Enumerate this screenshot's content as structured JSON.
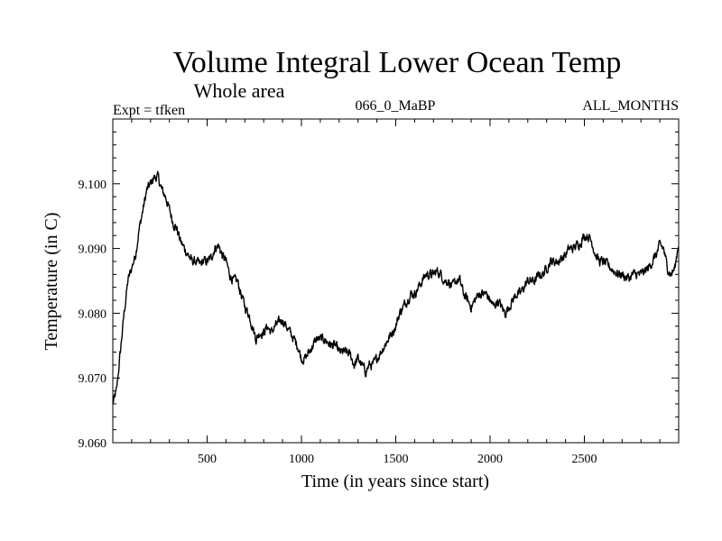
{
  "chart_data": {
    "type": "line",
    "title": "Volume Integral Lower Ocean Temp",
    "subtitle": "Whole area",
    "experiment": "Expt = tfken",
    "run_label": "066_0_MaBP",
    "months_label": "ALL_MONTHS",
    "xlabel": "Time (in years since start)",
    "ylabel": "Temperature (in C)",
    "xlim": [
      0,
      3000
    ],
    "ylim": [
      9.06,
      9.11
    ],
    "x_ticks": [
      500,
      1000,
      1500,
      2000,
      2500
    ],
    "x_tick_labels": [
      "500",
      "1000",
      "1500",
      "2000",
      "2500"
    ],
    "y_ticks": [
      9.06,
      9.07,
      9.08,
      9.09,
      9.1
    ],
    "y_tick_labels": [
      "9.060",
      "9.070",
      "9.080",
      "9.090",
      "9.100"
    ],
    "grid": false,
    "line_color": "#000000",
    "series": [
      {
        "x": [
          0,
          20,
          40,
          60,
          80,
          100,
          120,
          140,
          160,
          180,
          200,
          220,
          240,
          260,
          280,
          300,
          320,
          340,
          360,
          380,
          400,
          420,
          440,
          460,
          480,
          500,
          520,
          540,
          560,
          580,
          600,
          620,
          640,
          660,
          680,
          700,
          720,
          740,
          760,
          780,
          800,
          820,
          840,
          860,
          880,
          900,
          920,
          940,
          960,
          980,
          1000,
          1020,
          1040,
          1060,
          1080,
          1100,
          1120,
          1140,
          1160,
          1180,
          1200,
          1220,
          1240,
          1260,
          1280,
          1300,
          1320,
          1340,
          1360,
          1380,
          1400,
          1420,
          1440,
          1460,
          1480,
          1500,
          1520,
          1540,
          1560,
          1580,
          1600,
          1620,
          1640,
          1660,
          1680,
          1700,
          1720,
          1740,
          1760,
          1780,
          1800,
          1820,
          1840,
          1860,
          1880,
          1900,
          1920,
          1940,
          1960,
          1980,
          2000,
          2020,
          2040,
          2060,
          2080,
          2100,
          2120,
          2140,
          2160,
          2180,
          2200,
          2220,
          2240,
          2260,
          2280,
          2300,
          2320,
          2340,
          2360,
          2380,
          2400,
          2420,
          2440,
          2460,
          2480,
          2500,
          2520,
          2540,
          2560,
          2580,
          2600,
          2620,
          2640,
          2660,
          2680,
          2700,
          2720,
          2740,
          2760,
          2780,
          2800,
          2820,
          2840,
          2860,
          2880,
          2900,
          2920,
          2940,
          2960,
          2980,
          3000
        ],
        "values": [
          9.066,
          9.068,
          9.074,
          9.08,
          9.085,
          9.087,
          9.089,
          9.093,
          9.096,
          9.099,
          9.1,
          9.101,
          9.101,
          9.099,
          9.098,
          9.096,
          9.094,
          9.093,
          9.091,
          9.09,
          9.089,
          9.088,
          9.088,
          9.0875,
          9.088,
          9.088,
          9.0885,
          9.09,
          9.0905,
          9.089,
          9.088,
          9.086,
          9.085,
          9.085,
          9.083,
          9.081,
          9.08,
          9.078,
          9.076,
          9.077,
          9.077,
          9.078,
          9.077,
          9.078,
          9.0785,
          9.079,
          9.078,
          9.077,
          9.076,
          9.075,
          9.073,
          9.073,
          9.074,
          9.075,
          9.076,
          9.076,
          9.076,
          9.0755,
          9.075,
          9.075,
          9.074,
          9.074,
          9.074,
          9.0735,
          9.072,
          9.073,
          9.072,
          9.071,
          9.072,
          9.072,
          9.073,
          9.074,
          9.075,
          9.076,
          9.077,
          9.078,
          9.08,
          9.081,
          9.082,
          9.083,
          9.083,
          9.084,
          9.085,
          9.086,
          9.086,
          9.086,
          9.0865,
          9.086,
          9.085,
          9.085,
          9.084,
          9.085,
          9.085,
          9.083,
          9.082,
          9.081,
          9.082,
          9.083,
          9.083,
          9.083,
          9.082,
          9.081,
          9.082,
          9.081,
          9.08,
          9.081,
          9.082,
          9.083,
          9.083,
          9.084,
          9.085,
          9.085,
          9.085,
          9.086,
          9.086,
          9.087,
          9.088,
          9.088,
          9.088,
          9.0885,
          9.089,
          9.09,
          9.09,
          9.0905,
          9.091,
          9.092,
          9.092,
          9.091,
          9.089,
          9.088,
          9.088,
          9.0875,
          9.087,
          9.0865,
          9.086,
          9.086,
          9.0855,
          9.0855,
          9.086,
          9.086,
          9.086,
          9.0865,
          9.087,
          9.088,
          9.089,
          9.0905,
          9.09,
          9.087,
          9.086,
          9.087,
          9.091
        ]
      }
    ]
  }
}
